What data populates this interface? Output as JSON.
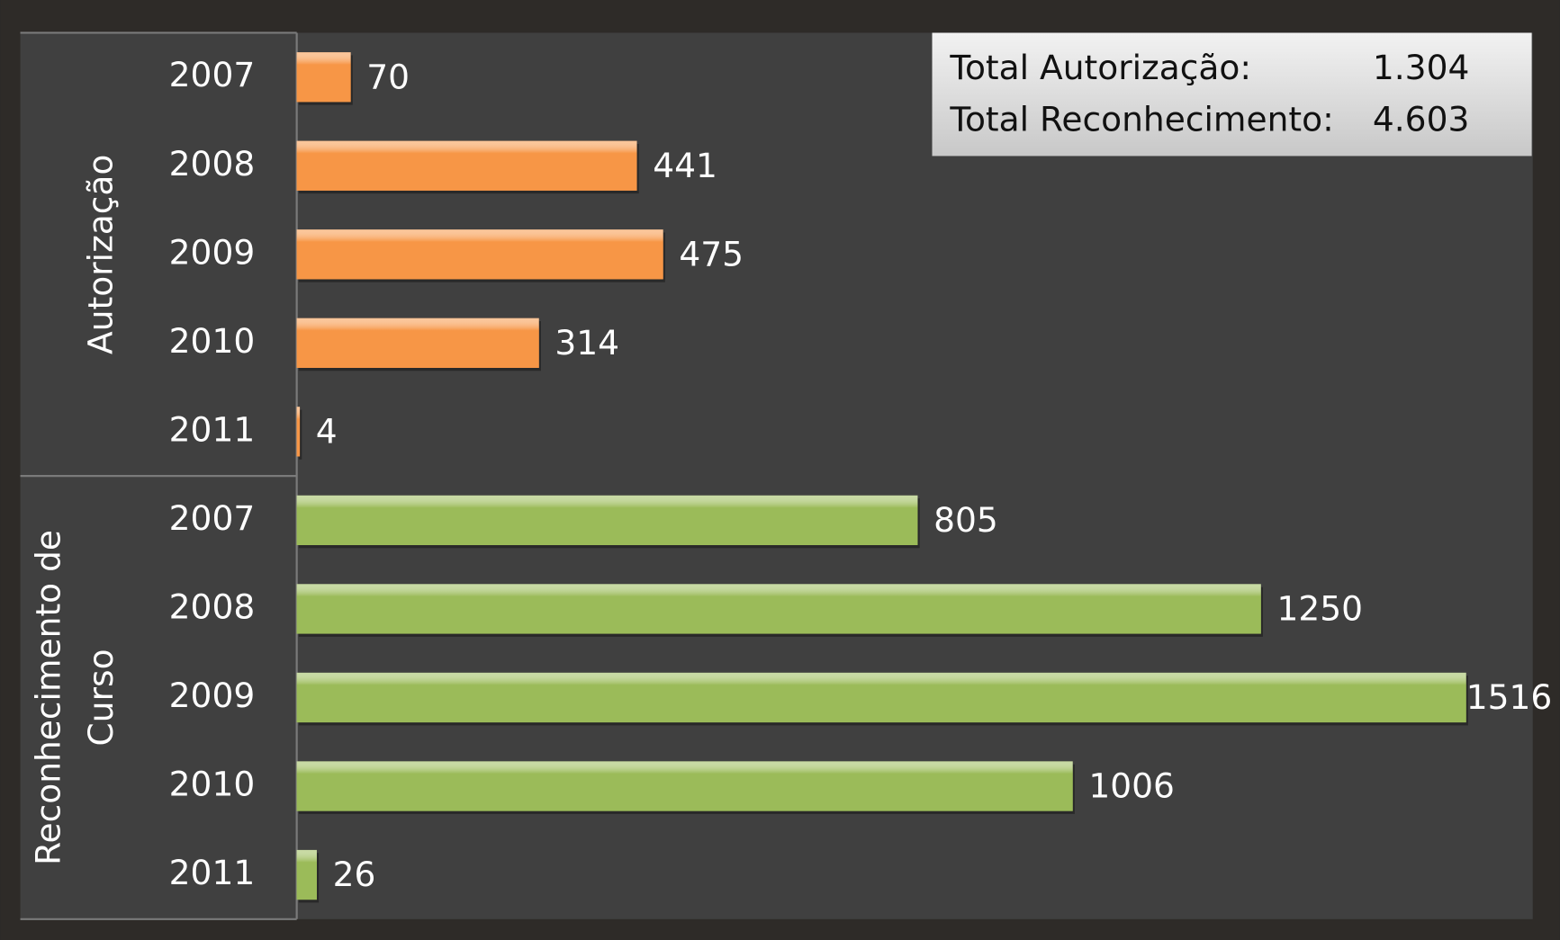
{
  "chart_data": {
    "type": "bar",
    "groups": [
      {
        "name": "Autorização",
        "color": "#f79646",
        "categories": [
          "2007",
          "2008",
          "2009",
          "2010",
          "2011"
        ],
        "values": [
          70,
          441,
          475,
          314,
          4
        ]
      },
      {
        "name": "Reconhecimento de Curso",
        "color": "#9bbb59",
        "categories": [
          "2007",
          "2008",
          "2009",
          "2010",
          "2011"
        ],
        "values": [
          805,
          1250,
          1516,
          1006,
          26
        ]
      }
    ],
    "totals": [
      {
        "label": "Total Autorização:",
        "value": 1304,
        "value_label": "1.304"
      },
      {
        "label": "Total Reconhecimento:",
        "value": 4603,
        "value_label": "4.603"
      }
    ]
  }
}
